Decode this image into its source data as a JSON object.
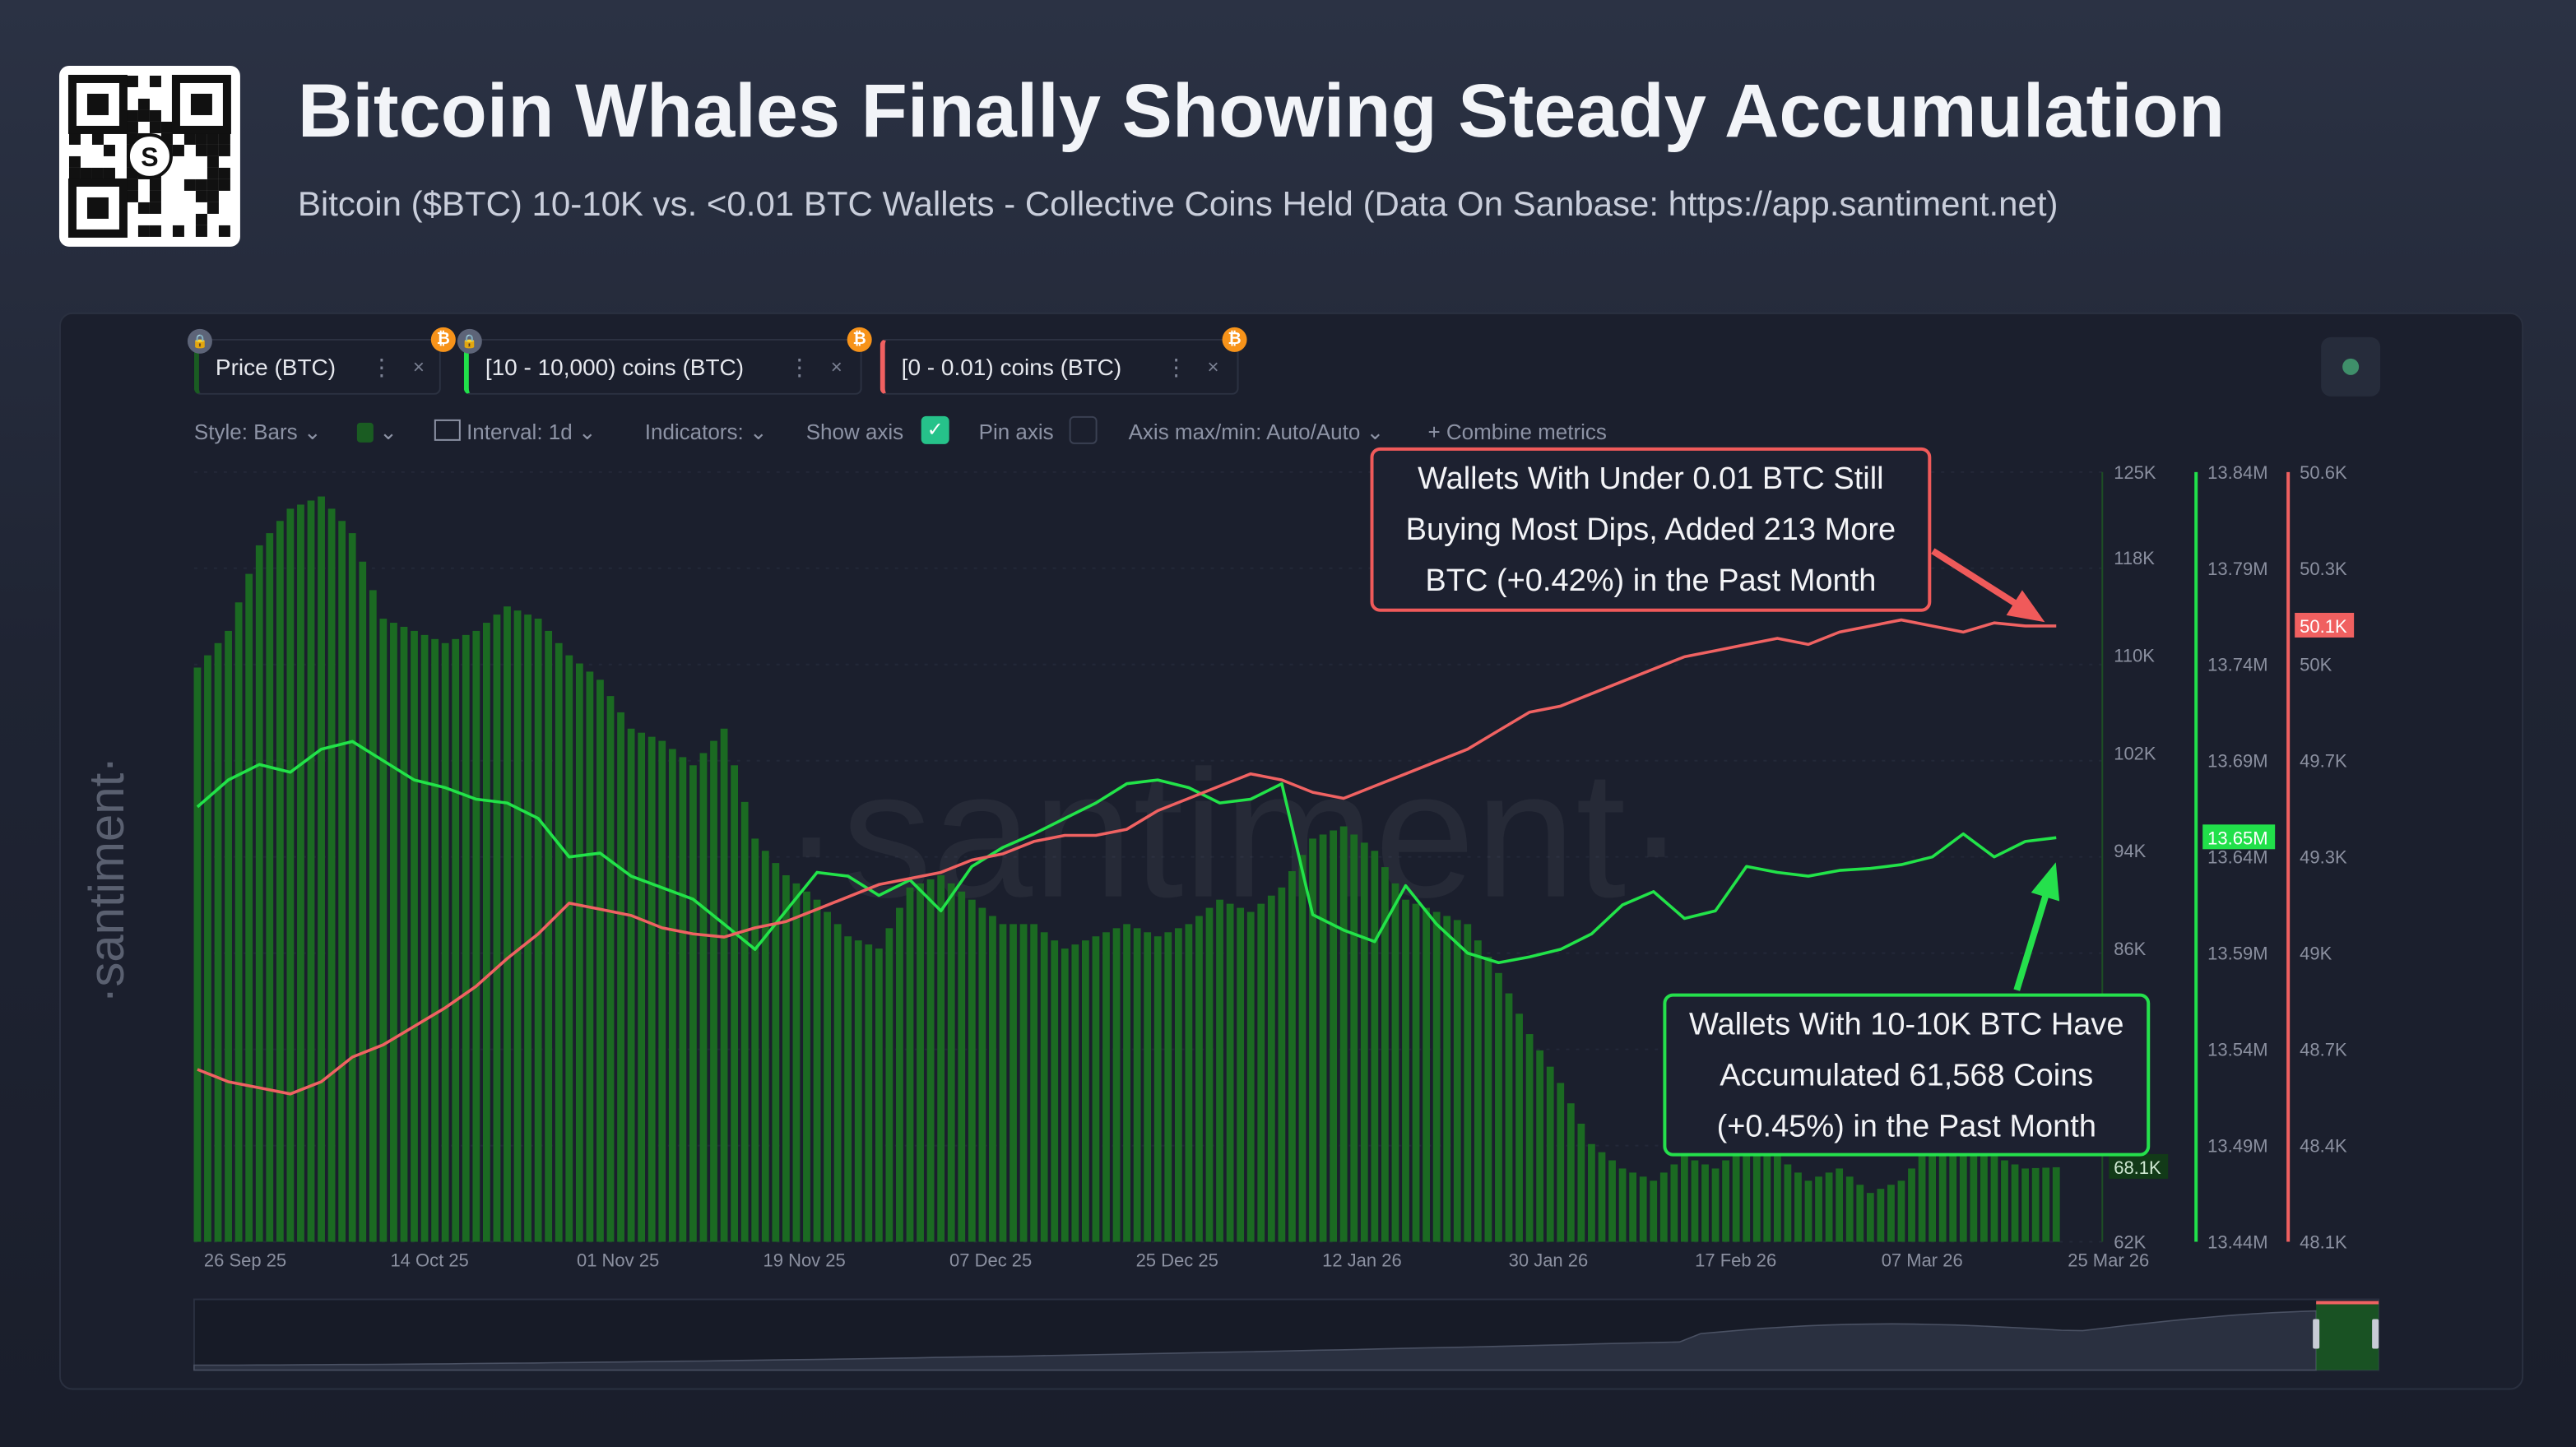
{
  "header": {
    "title": "Bitcoin Whales Finally Showing Steady Accumulation",
    "subtitle": "Bitcoin ($BTC) 10-10K vs. <0.01 BTC Wallets - Collective Coins Held (Data On Sanbase: https://app.santiment.net)",
    "qr_logo": "S"
  },
  "metrics": [
    {
      "label": "Price (BTC)",
      "color": "#1a5c22",
      "icon": "bitcoin-icon",
      "locked": true
    },
    {
      "label": "[10 - 10,000) coins (BTC)",
      "color": "#21e04a",
      "icon": "bitcoin-icon",
      "locked": true
    },
    {
      "label": "[0 - 0.01) coins (BTC)",
      "color": "#f06060",
      "icon": "bitcoin-icon",
      "locked": false
    }
  ],
  "toolbar": {
    "style": "Style: Bars",
    "interval": "Interval: 1d",
    "indicators": "Indicators:",
    "show_axis": "Show axis",
    "show_axis_checked": true,
    "pin_axis": "Pin axis",
    "pin_axis_checked": false,
    "axis_minmax": "Axis max/min: Auto/Auto",
    "combine": "Combine metrics"
  },
  "watermark": "santiment",
  "annotations": {
    "red": [
      "Wallets With Under 0.01 BTC Still",
      "Buying Most Dips, Added 213 More",
      "BTC (+0.42%) in the Past Month"
    ],
    "green": [
      "Wallets With 10-10K BTC Have",
      "Accumulated 61,568 Coins",
      "(+0.45%) in the Past Month"
    ]
  },
  "chart_data": {
    "type": "bar+line",
    "x_start": "26 Sep 25",
    "x_step_days": 3,
    "x_ticks": [
      "26 Sep 25",
      "14 Oct 25",
      "01 Nov 25",
      "19 Nov 25",
      "07 Dec 25",
      "25 Dec 25",
      "12 Jan 26",
      "30 Jan 26",
      "17 Feb 26",
      "07 Mar 26",
      "25 Mar 26"
    ],
    "axes": [
      {
        "series": "Price (BTC)",
        "ticks": [
          "125K",
          "118K",
          "110K",
          "102K",
          "94K",
          "86K",
          "62K"
        ],
        "range": [
          62000,
          125000
        ],
        "last_label": "68.1K",
        "color": "#1a6b24"
      },
      {
        "series": "[10 - 10,000) coins (BTC)",
        "ticks": [
          "13.84M",
          "13.79M",
          "13.74M",
          "13.69M",
          "13.64M",
          "13.59M",
          "13.54M",
          "13.49M",
          "13.44M"
        ],
        "range": [
          13.44,
          13.84
        ],
        "last_label": "13.65M",
        "color": "#21e04a"
      },
      {
        "series": "[0 - 0.01) coins (BTC)",
        "ticks": [
          "50.6K",
          "50.3K",
          "50K",
          "49.7K",
          "49.3K",
          "49K",
          "48.7K",
          "48.4K",
          "48.1K"
        ],
        "range": [
          48.1,
          50.6
        ],
        "last_label": "50.1K",
        "color": "#f06060"
      }
    ],
    "series": [
      {
        "name": "Price (BTC)",
        "style": "bars",
        "unit": "K USD",
        "values": [
          109,
          112,
          119,
          122,
          123,
          120,
          113,
          112,
          111,
          112,
          114,
          113,
          110,
          108,
          104,
          103,
          101,
          104,
          95,
          92,
          90,
          87,
          86,
          91,
          92,
          90,
          88,
          88,
          86,
          87,
          88,
          87,
          88,
          90,
          89,
          91,
          95,
          96,
          94,
          90,
          89,
          88,
          84,
          79,
          75,
          70,
          68,
          67,
          69,
          68,
          70,
          69,
          67,
          68,
          66,
          67,
          70,
          71,
          69,
          68,
          68.1
        ]
      },
      {
        "name": "[10 - 10,000) coins (BTC)",
        "style": "line",
        "unit": "M BTC",
        "values": [
          13.666,
          13.68,
          13.688,
          13.684,
          13.696,
          13.7,
          13.69,
          13.68,
          13.676,
          13.67,
          13.668,
          13.66,
          13.64,
          13.642,
          13.63,
          13.624,
          13.618,
          13.605,
          13.592,
          13.612,
          13.632,
          13.63,
          13.62,
          13.628,
          13.612,
          13.635,
          13.645,
          13.652,
          13.66,
          13.668,
          13.678,
          13.68,
          13.676,
          13.668,
          13.67,
          13.678,
          13.61,
          13.602,
          13.596,
          13.625,
          13.605,
          13.59,
          13.585,
          13.588,
          13.592,
          13.6,
          13.615,
          13.622,
          13.608,
          13.612,
          13.635,
          13.632,
          13.63,
          13.633,
          13.634,
          13.636,
          13.64,
          13.652,
          13.64,
          13.648,
          13.65
        ]
      },
      {
        "name": "[0 - 0.01) coins (BTC)",
        "style": "line",
        "unit": "K BTC",
        "values": [
          48.66,
          48.62,
          48.6,
          48.58,
          48.62,
          48.7,
          48.74,
          48.8,
          48.86,
          48.93,
          49.02,
          49.1,
          49.2,
          49.18,
          49.16,
          49.12,
          49.1,
          49.09,
          49.12,
          49.14,
          49.18,
          49.22,
          49.26,
          49.28,
          49.3,
          49.34,
          49.36,
          49.4,
          49.42,
          49.42,
          49.44,
          49.5,
          49.54,
          49.58,
          49.62,
          49.6,
          49.56,
          49.54,
          49.58,
          49.62,
          49.66,
          49.7,
          49.76,
          49.82,
          49.84,
          49.88,
          49.92,
          49.96,
          50.0,
          50.02,
          50.04,
          50.06,
          50.04,
          50.08,
          50.1,
          50.12,
          50.1,
          50.08,
          50.11,
          50.1,
          50.1
        ]
      }
    ],
    "grid": true
  }
}
